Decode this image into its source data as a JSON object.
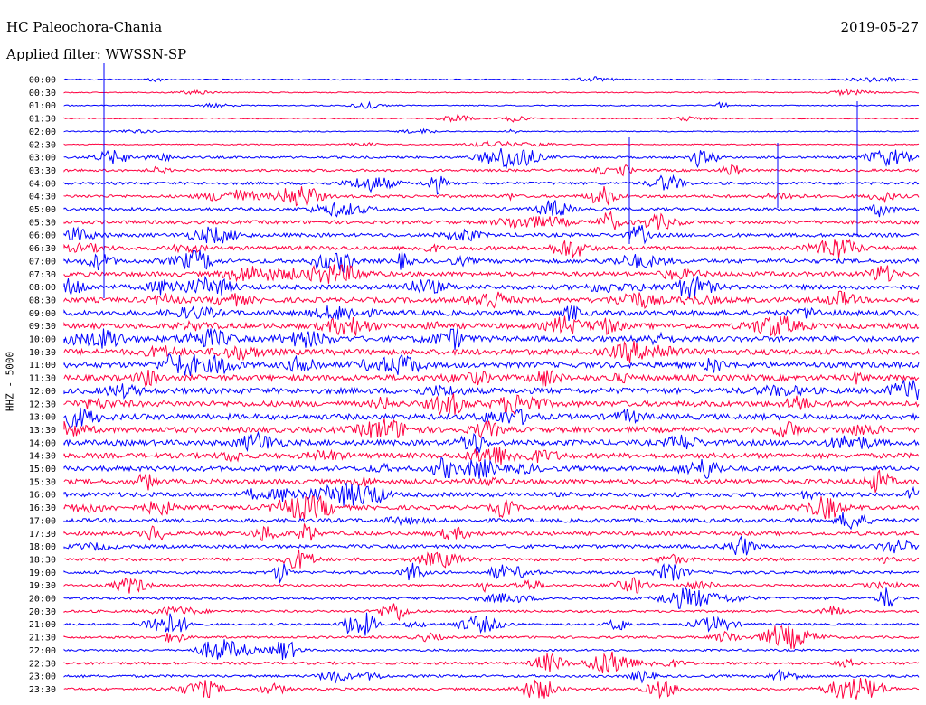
{
  "header": {
    "station": "HC Paleochora-Chania",
    "date": "2019-05-27",
    "filter": "Applied filter: WWSSN-SP"
  },
  "chart_data": {
    "type": "line",
    "ylabel": "HHZ - 5000",
    "row_labels": [
      "00:00",
      "00:30",
      "01:00",
      "01:30",
      "02:00",
      "02:30",
      "03:00",
      "03:30",
      "04:00",
      "04:30",
      "05:00",
      "05:30",
      "06:00",
      "06:30",
      "07:00",
      "07:30",
      "08:00",
      "08:30",
      "09:00",
      "09:30",
      "10:00",
      "10:30",
      "11:00",
      "11:30",
      "12:00",
      "12:30",
      "13:00",
      "13:30",
      "14:00",
      "14:30",
      "15:00",
      "15:30",
      "16:00",
      "16:30",
      "17:00",
      "17:30",
      "18:00",
      "18:30",
      "19:00",
      "19:30",
      "20:00",
      "20:30",
      "21:00",
      "21:30",
      "22:00",
      "22:30",
      "23:00",
      "23:30"
    ],
    "colors": [
      "#0000ff",
      "#ff0040"
    ],
    "grid": false
  }
}
